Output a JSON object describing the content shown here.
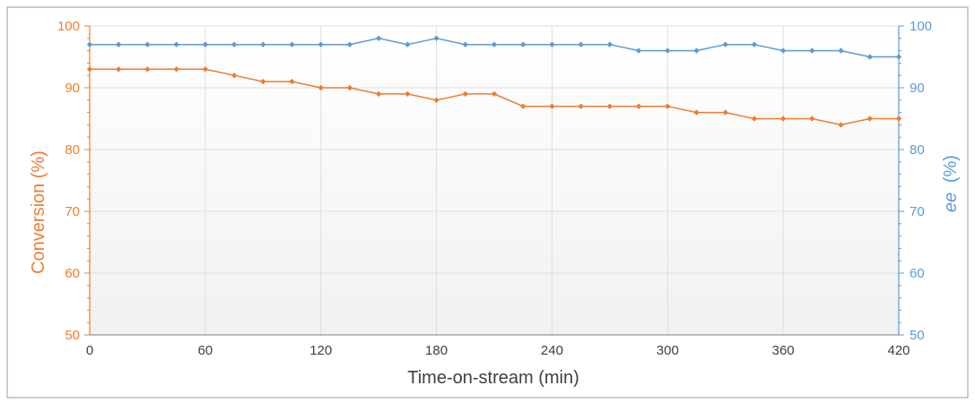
{
  "chart_data": {
    "type": "line",
    "xlabel": "Time-on-stream (min)",
    "ylabel_left": "Conversion (%)",
    "ylabel_right_italic": "ee",
    "ylabel_right_unit": "(%)",
    "xlim": [
      0,
      420
    ],
    "ylim_left": [
      50,
      100
    ],
    "ylim_right": [
      50,
      100
    ],
    "x_ticks": [
      0,
      60,
      120,
      180,
      240,
      300,
      360,
      420
    ],
    "y_ticks": [
      50,
      60,
      70,
      80,
      90,
      100
    ],
    "grid": true,
    "legend": "none",
    "x": [
      0,
      15,
      30,
      45,
      60,
      75,
      90,
      105,
      120,
      135,
      150,
      165,
      180,
      195,
      210,
      225,
      240,
      255,
      270,
      285,
      300,
      315,
      330,
      345,
      360,
      375,
      390,
      405,
      420
    ],
    "series": [
      {
        "axis": "left",
        "color": "#ed7d31",
        "values": [
          93,
          93,
          93,
          93,
          93,
          92,
          91,
          91,
          90,
          90,
          89,
          89,
          88,
          89,
          89,
          87,
          87,
          87,
          87,
          87,
          87,
          86,
          86,
          85,
          85,
          85,
          84,
          85,
          85
        ]
      },
      {
        "axis": "right",
        "color": "#5b9bd5",
        "values": [
          97,
          97,
          97,
          97,
          97,
          97,
          97,
          97,
          97,
          97,
          98,
          97,
          98,
          97,
          97,
          97,
          97,
          97,
          97,
          96,
          96,
          96,
          97,
          97,
          96,
          96,
          96,
          95,
          95
        ]
      }
    ]
  }
}
